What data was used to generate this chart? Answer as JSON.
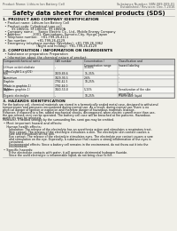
{
  "bg_color": "#f0efe8",
  "title": "Safety data sheet for chemical products (SDS)",
  "header_left": "Product Name: Lithium Ion Battery Cell",
  "header_right_line1": "Substance Number: SBN-089-009-01",
  "header_right_line2": "Established / Revision: Dec.7,2016",
  "section1_title": "1. PRODUCT AND COMPANY IDENTIFICATION",
  "section1_lines": [
    "  • Product name: Lithium Ion Battery Cell",
    "  • Product code: Cylindrical-type cell",
    "         SY-18650U, SY-18650L, SY-18650A",
    "  • Company name:     Sanyo Electric Co., Ltd., Mobile Energy Company",
    "  • Address:            2001, Kaminakaen, Sumoto-City, Hyogo, Japan",
    "  • Telephone number:   +81-799-26-4111",
    "  • Fax number:          +81-799-26-4129",
    "  • Emergency telephone number (Weekday): +81-799-26-3962",
    "                                  (Night and holiday): +81-799-26-4129"
  ],
  "section2_title": "2. COMPOSITION / INFORMATION ON INGREDIENTS",
  "section2_intro": "  • Substance or preparation: Preparation",
  "section2_sub": "  • Information about the chemical nature of product:",
  "table_col_labels": [
    "Component/chemical name",
    "CAS number",
    "Concentration /\nConcentration range",
    "Classification and\nhazard labeling"
  ],
  "table_rows": [
    [
      "Lithium oxide/cobaltate\n(LiMnxCoyNi(1-x-y)O2)",
      "-",
      "30-60%",
      "-"
    ],
    [
      "Iron",
      "7439-89-6",
      "15-35%",
      "-"
    ],
    [
      "Aluminium",
      "7429-90-5",
      "2-6%",
      "-"
    ],
    [
      "Graphite\n(Made in graphite-1)\n(A-Micro graphite-1)",
      "7782-42-5\n7782-44-0",
      "10-25%",
      "-"
    ],
    [
      "Copper",
      "7440-50-8",
      "5-15%",
      "Sensitization of the skin\ngroup No.2"
    ],
    [
      "Organic electrolyte",
      "-",
      "10-25%",
      "Flammable liquid"
    ]
  ],
  "section3_title": "3. HAZARDS IDENTIFICATION",
  "section3_para": [
    "For the battery cell, chemical materials are stored in a hermetically sealed metal case, designed to withstand",
    "temperatures and pressures encountered during normal use. As a result, during normal use, there is no",
    "physical danger of ignition or explosion and therefore danger of hazardous materials leakage.",
    "However, if exposed to a fire, added mechanical shocks, decomposed, when electric current more than use,",
    "the gas release vent can be operated. The battery cell case will be breached at fire patterns. Hazardous",
    "materials may be released.",
    "Moreover, if heated strongly by the surrounding fire, sorot gas may be emitted."
  ],
  "section3_bullet1": "• Most important hazard and effects:",
  "section3_human_label": "   Human health effects:",
  "section3_human_lines": [
    "      Inhalation: The release of the electrolyte has an anesthesia action and stimulates a respiratory tract.",
    "      Skin contact: The release of the electrolyte stimulates a skin. The electrolyte skin contact causes a",
    "      sore and stimulation on the skin.",
    "      Eye contact: The release of the electrolyte stimulates eyes. The electrolyte eye contact causes a sore",
    "      and stimulation on the eye. Especially, a substance that causes a strong inflammation of the eyes is",
    "      contained.",
    "      Environmental effects: Since a battery cell remains in the environment, do not throw out it into the",
    "      environment."
  ],
  "section3_bullet2": "• Specific hazards:",
  "section3_specific_lines": [
    "      If the electrolyte contacts with water, it will generate detrimental hydrogen fluoride.",
    "      Since the used electrolyte is inflammable liquid, do not bring close to fire."
  ]
}
